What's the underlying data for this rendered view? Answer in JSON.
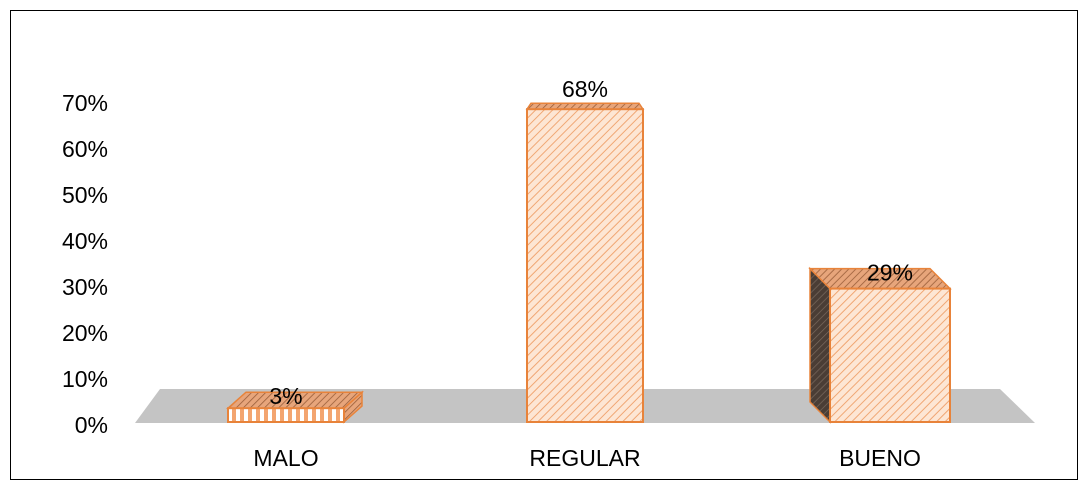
{
  "chart_data": {
    "type": "bar",
    "style": "3d-column",
    "categories": [
      "MALO",
      "REGULAR",
      "BUENO"
    ],
    "values": [
      3,
      68,
      29
    ],
    "data_labels": [
      "3%",
      "68%",
      "29%"
    ],
    "yticks": [
      "0%",
      "10%",
      "20%",
      "30%",
      "40%",
      "50%",
      "60%",
      "70%"
    ],
    "ylim": [
      0,
      70
    ],
    "title": "",
    "xlabel": "",
    "ylabel": "",
    "grid": false,
    "legend": "none",
    "colors": {
      "bar_fill": "#fde2cc",
      "bar_hatch": "#f0a673",
      "bar_edge": "#e8833a",
      "side_face": "#5a4a40",
      "floor": "#c4c4c4"
    }
  }
}
